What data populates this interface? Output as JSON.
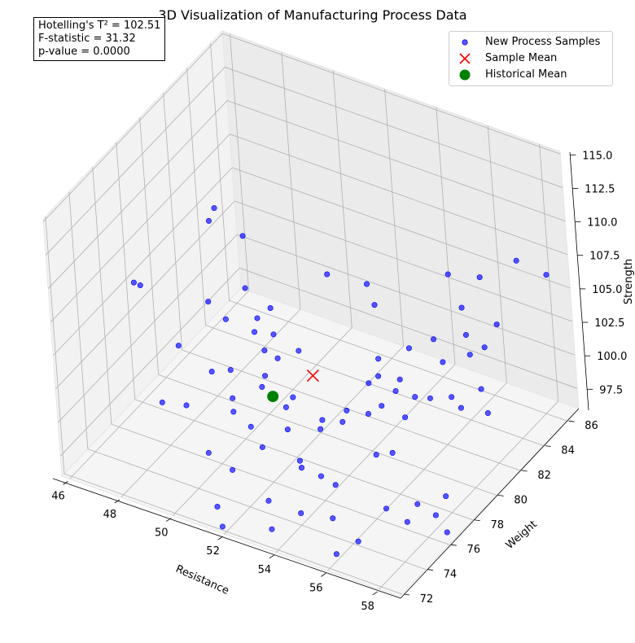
{
  "chart_data": {
    "type": "scatter3d",
    "title": "3D Visualization of Manufacturing Process Data",
    "xlabel": "Resistance",
    "ylabel": "Weight",
    "zlabel": "Strength",
    "xlim": [
      45.7,
      58.8
    ],
    "ylim": [
      71.8,
      87.0
    ],
    "zlim": [
      96.0,
      115.2
    ],
    "xticks": [
      "46",
      "48",
      "50",
      "52",
      "54",
      "56",
      "58"
    ],
    "yticks": [
      "72",
      "74",
      "76",
      "78",
      "80",
      "82",
      "84",
      "86"
    ],
    "zticks": [
      "97.5",
      "100.0",
      "102.5",
      "105.0",
      "107.5",
      "110.0",
      "112.5",
      "115.0"
    ],
    "grid": true,
    "legend_position": "top-right",
    "colors": {
      "samples": "#0000ff",
      "sample_mean": "#ff0000",
      "historical_mean": "#008000"
    },
    "series": [
      {
        "name": "New Process Samples",
        "marker": "circle",
        "points": [
          [
            46.5,
            77.0,
            106.2
          ],
          [
            47.0,
            76.5,
            106.8
          ],
          [
            48.4,
            79.5,
            109.8
          ],
          [
            48.6,
            79.6,
            110.8
          ],
          [
            49.2,
            80.5,
            108.3
          ],
          [
            48.9,
            78.0,
            105.5
          ],
          [
            49.4,
            80.0,
            105.0
          ],
          [
            48.5,
            76.2,
            103.6
          ],
          [
            49.5,
            78.1,
            104.5
          ],
          [
            50.3,
            79.0,
            104.3
          ],
          [
            50.6,
            79.5,
            104.8
          ],
          [
            50.4,
            78.5,
            103.8
          ],
          [
            50.9,
            79.0,
            103.5
          ],
          [
            51.6,
            79.5,
            102.3
          ],
          [
            51.0,
            78.0,
            103.3
          ],
          [
            51.4,
            78.2,
            102.8
          ],
          [
            49.7,
            76.3,
            102.4
          ],
          [
            50.2,
            76.8,
            102.4
          ],
          [
            51.2,
            77.5,
            102.0
          ],
          [
            51.3,
            77.0,
            101.7
          ],
          [
            50.6,
            76.0,
            101.3
          ],
          [
            48.8,
            74.0,
            101.6
          ],
          [
            49.5,
            74.5,
            101.4
          ],
          [
            50.8,
            75.6,
            100.8
          ],
          [
            51.4,
            75.7,
            100.0
          ],
          [
            52.4,
            77.2,
            101.5
          ],
          [
            52.2,
            77.0,
            100.8
          ],
          [
            53.2,
            77.8,
            99.8
          ],
          [
            53.8,
            78.2,
            99.7
          ],
          [
            53.2,
            77.6,
            99.3
          ],
          [
            52.3,
            76.8,
            99.4
          ],
          [
            51.9,
            75.5,
            99.0
          ],
          [
            50.5,
            74.0,
            99.0
          ],
          [
            51.5,
            73.8,
            98.6
          ],
          [
            53.2,
            75.8,
            98.6
          ],
          [
            53.4,
            75.5,
            98.5
          ],
          [
            54.0,
            75.8,
            98.0
          ],
          [
            55.4,
            77.5,
            99.0
          ],
          [
            55.9,
            77.8,
            99.2
          ],
          [
            54.5,
            75.9,
            97.6
          ],
          [
            54.0,
            74.0,
            96.9
          ],
          [
            53.0,
            73.5,
            97.6
          ],
          [
            51.6,
            72.2,
            97.4
          ],
          [
            51.9,
            71.9,
            96.4
          ],
          [
            53.4,
            72.8,
            96.4
          ],
          [
            55.1,
            74.3,
            97.0
          ],
          [
            56.5,
            75.8,
            97.3
          ],
          [
            57.4,
            76.5,
            97.6
          ],
          [
            58.2,
            77.2,
            98.1
          ],
          [
            57.2,
            76.0,
            96.6
          ],
          [
            58.0,
            76.7,
            97.0
          ],
          [
            58.4,
            76.7,
            96.0
          ],
          [
            55.6,
            73.4,
            95.5
          ],
          [
            56.2,
            74.0,
            96.3
          ],
          [
            55.0,
            79.0,
            104.5
          ],
          [
            55.8,
            79.9,
            105.0
          ],
          [
            56.5,
            80.5,
            105.6
          ],
          [
            57.4,
            81.3,
            105.8
          ],
          [
            58.2,
            82.2,
            106.3
          ],
          [
            58.0,
            81.5,
            105.1
          ],
          [
            57.5,
            81.3,
            104.4
          ],
          [
            56.8,
            80.5,
            104.1
          ],
          [
            55.2,
            78.5,
            103.8
          ],
          [
            55.8,
            79.0,
            103.5
          ],
          [
            54.8,
            78.5,
            103.0
          ],
          [
            55.6,
            79.0,
            102.5
          ],
          [
            56.2,
            79.3,
            102.2
          ],
          [
            56.6,
            79.7,
            102.0
          ],
          [
            55.4,
            78.2,
            102.0
          ],
          [
            57.3,
            80.0,
            102.3
          ],
          [
            58.1,
            80.8,
            102.7
          ],
          [
            57.6,
            80.1,
            101.6
          ],
          [
            58.4,
            80.6,
            101.3
          ],
          [
            54.4,
            77.4,
            101.7
          ],
          [
            55.0,
            77.9,
            101.4
          ],
          [
            56.0,
            78.8,
            101.0
          ],
          [
            54.4,
            80.2,
            107.0
          ],
          [
            54.0,
            80.5,
            108.0
          ],
          [
            56.2,
            82.6,
            108.3
          ],
          [
            57.0,
            83.5,
            107.8
          ],
          [
            58.0,
            84.5,
            108.8
          ],
          [
            56.8,
            82.3,
            106.5
          ],
          [
            58.9,
            85.0,
            107.9
          ],
          [
            52.7,
            80.0,
            108.3
          ]
        ]
      },
      {
        "name": "Sample Mean",
        "marker": "x",
        "points": [
          [
            52.5,
            78.7,
            101.8
          ]
        ]
      },
      {
        "name": "Historical Mean",
        "marker": "filled-circle",
        "points": [
          [
            51.2,
            78.0,
            100.0
          ]
        ]
      }
    ]
  },
  "stats": {
    "t2": "Hotelling's T² = 102.51",
    "f": "F-statistic = 31.32",
    "p": "p-value = 0.0000"
  }
}
